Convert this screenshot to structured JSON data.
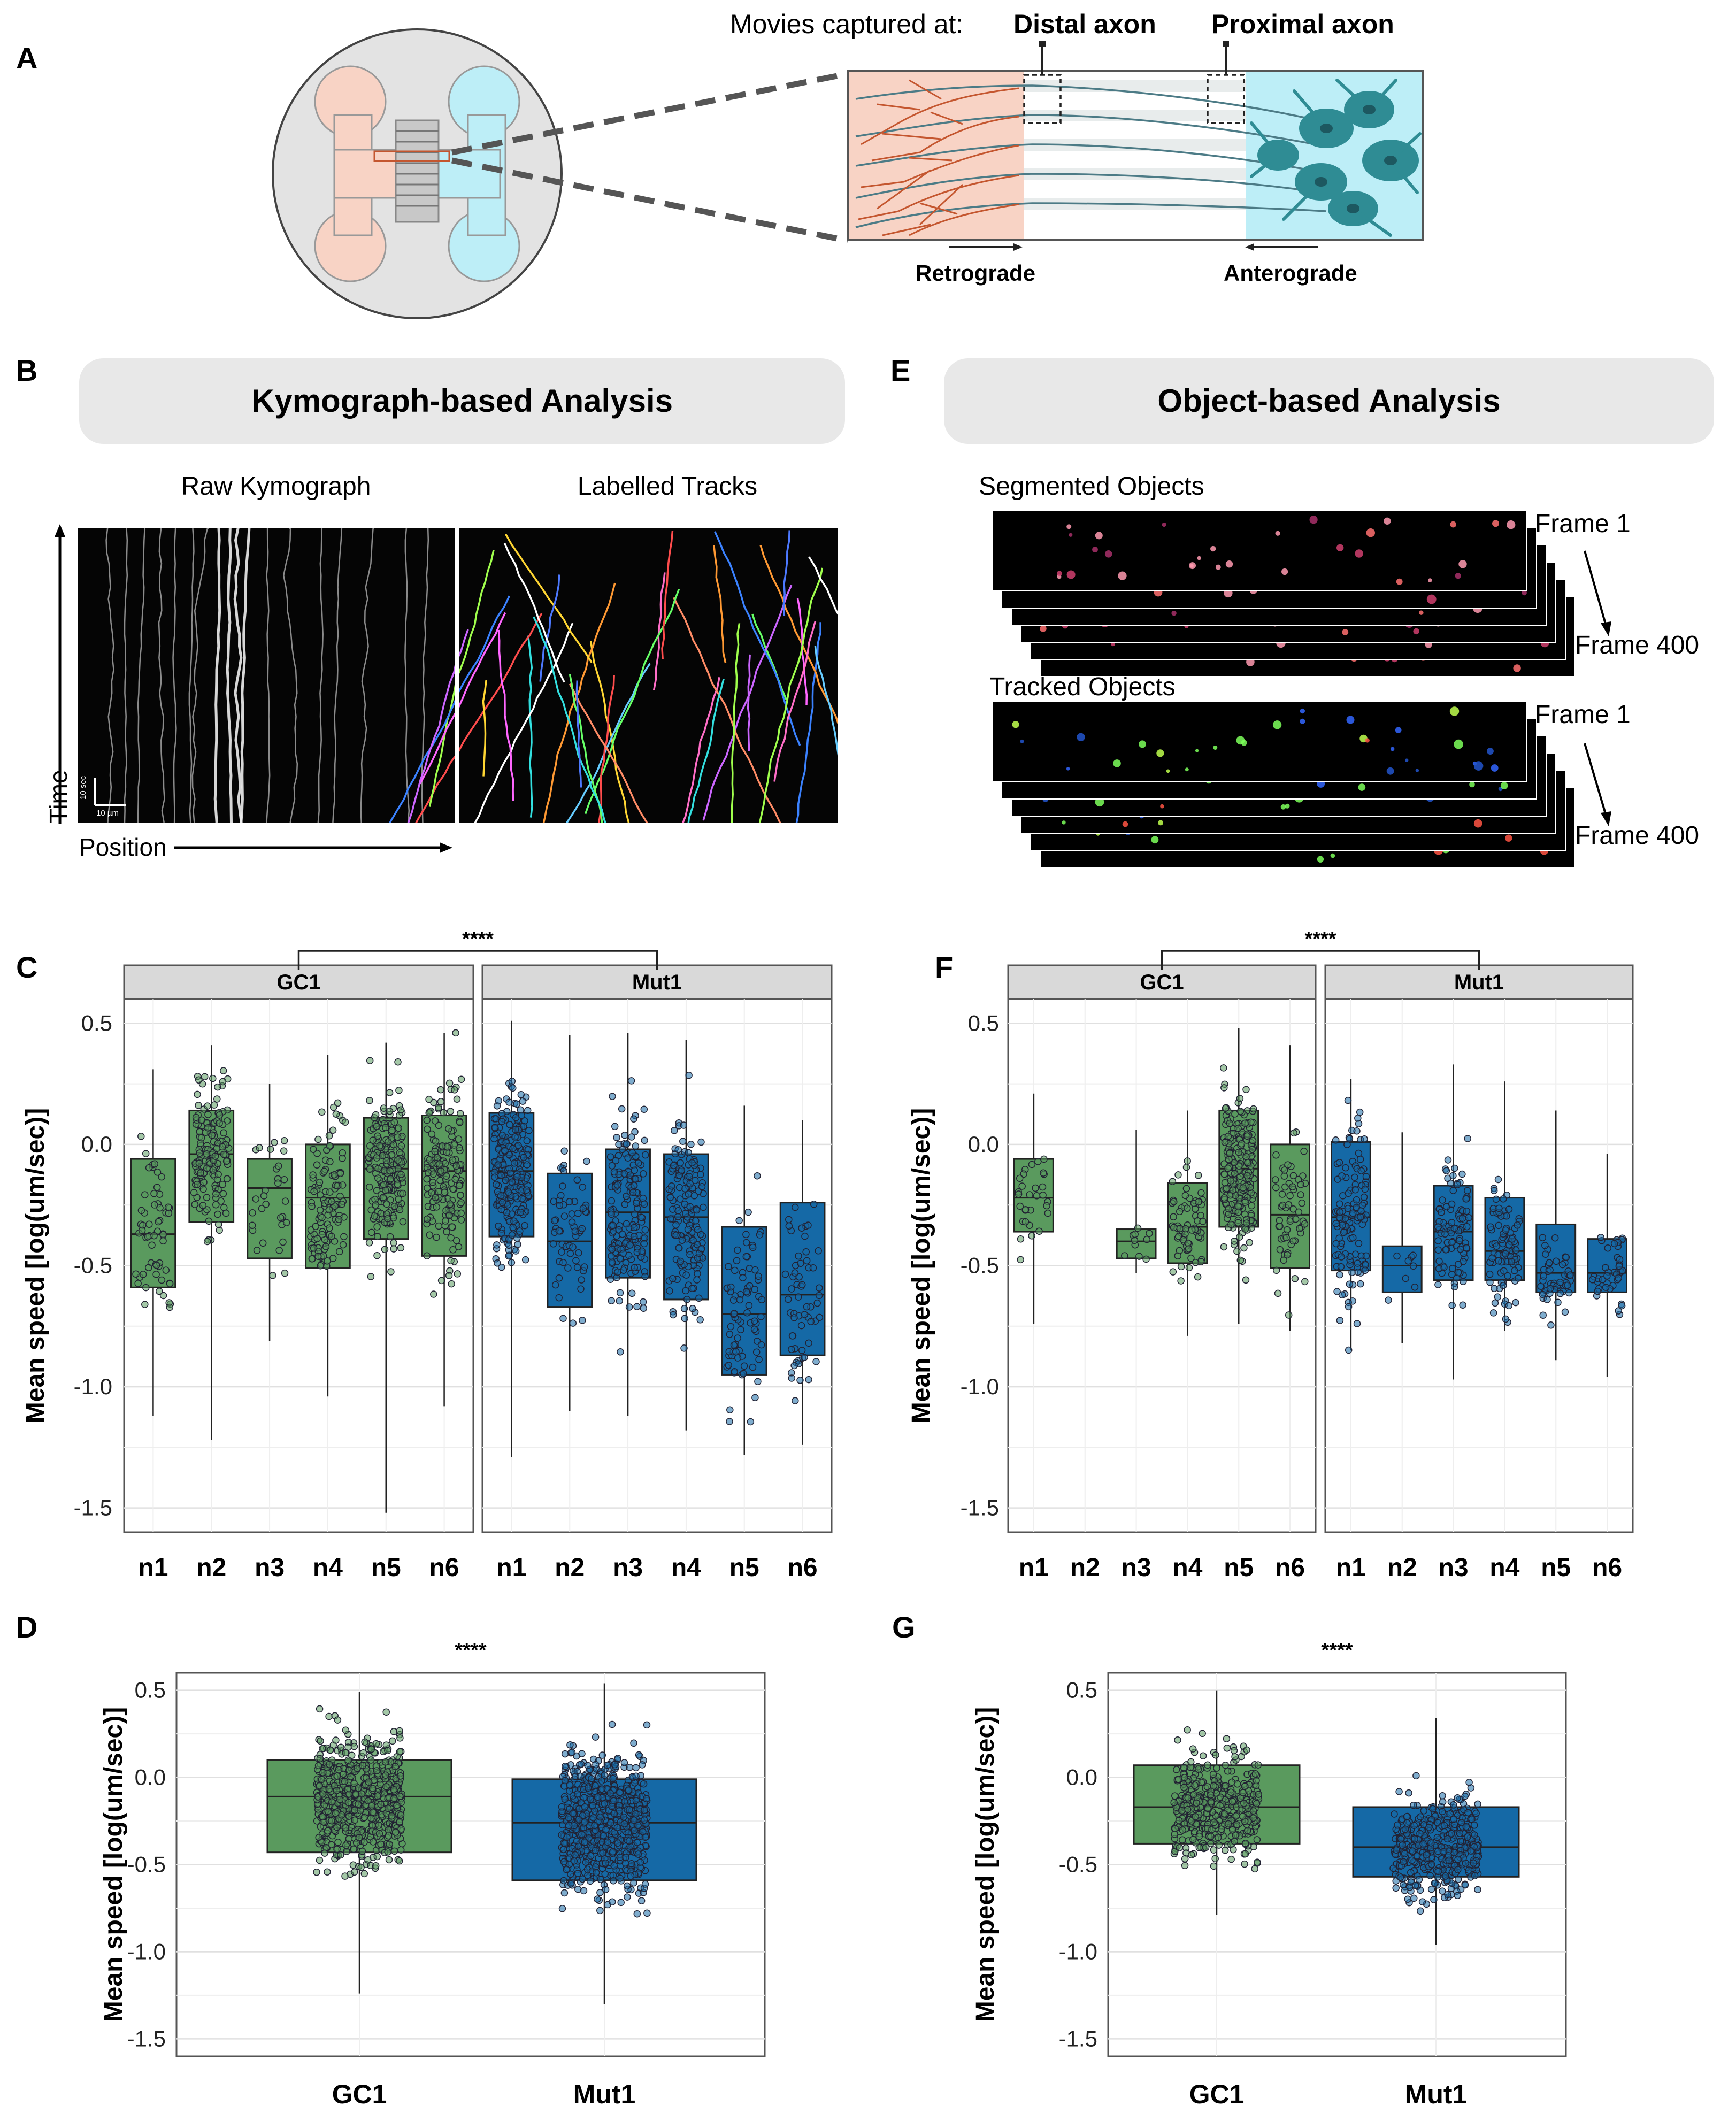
{
  "panel_labels": {
    "a": "A",
    "b": "B",
    "c": "C",
    "d": "D",
    "e": "E",
    "f": "F",
    "g": "G"
  },
  "colors": {
    "gc1": "#5a9a5e",
    "mut1": "#1569a6",
    "salmon": "#f8d3c5",
    "cyan": "#bdeef7",
    "neuron": "#2f8c94",
    "axon_red": "#c4562f",
    "strip": "#d9d9d9"
  },
  "panel_a": {
    "movies_caption": "Movies captured at:",
    "distal": "Distal axon",
    "proximal": "Proximal axon",
    "retrograde": "Retrograde",
    "anterograde": "Anterograde"
  },
  "panel_b": {
    "header": "Kymograph-based Analysis",
    "raw_title": "Raw Kymograph",
    "labelled_title": "Labelled Tracks",
    "time_label": "Time",
    "position_label": "Position",
    "scale_time": "10 sec",
    "scale_space": "10 µm"
  },
  "panel_e": {
    "header": "Object-based Analysis",
    "segmented_title": "Segmented Objects",
    "tracked_title": "Tracked Objects",
    "frame_first": "Frame 1",
    "frame_last": "Frame 400"
  },
  "chart_data": [
    {
      "panel": "C",
      "type": "box",
      "title": "",
      "ylabel": "Mean speed [log(um/sec)]",
      "ylim": [
        -1.6,
        0.6
      ],
      "yticks": [
        "0.5",
        "0.0",
        "-0.5",
        "-1.0",
        "-1.5"
      ],
      "significance": "****",
      "facets": [
        {
          "name": "GC1",
          "color": "gc1",
          "categories": [
            "n1",
            "n2",
            "n3",
            "n4",
            "n5",
            "n6"
          ],
          "boxes": [
            {
              "q1": -0.59,
              "median": -0.37,
              "q3": -0.06,
              "min": -1.12,
              "max": 0.31,
              "n": 60
            },
            {
              "q1": -0.32,
              "median": -0.04,
              "q3": 0.14,
              "min": -1.22,
              "max": 0.41,
              "n": 150
            },
            {
              "q1": -0.47,
              "median": -0.18,
              "q3": -0.06,
              "min": -0.81,
              "max": 0.25,
              "n": 30
            },
            {
              "q1": -0.51,
              "median": -0.22,
              "q3": 0.0,
              "min": -1.04,
              "max": 0.37,
              "n": 110
            },
            {
              "q1": -0.39,
              "median": -0.1,
              "q3": 0.11,
              "min": -1.52,
              "max": 0.42,
              "n": 200
            },
            {
              "q1": -0.46,
              "median": -0.11,
              "q3": 0.12,
              "min": -1.08,
              "max": 0.46,
              "n": 170
            }
          ]
        },
        {
          "name": "Mut1",
          "color": "mut1",
          "categories": [
            "n1",
            "n2",
            "n3",
            "n4",
            "n5",
            "n6"
          ],
          "boxes": [
            {
              "q1": -0.38,
              "median": -0.11,
              "q3": 0.13,
              "min": -1.29,
              "max": 0.51,
              "n": 230
            },
            {
              "q1": -0.67,
              "median": -0.4,
              "q3": -0.12,
              "min": -1.1,
              "max": 0.45,
              "n": 60
            },
            {
              "q1": -0.55,
              "median": -0.28,
              "q3": -0.02,
              "min": -1.12,
              "max": 0.46,
              "n": 170
            },
            {
              "q1": -0.64,
              "median": -0.3,
              "q3": -0.04,
              "min": -1.18,
              "max": 0.43,
              "n": 150
            },
            {
              "q1": -0.95,
              "median": -0.7,
              "q3": -0.34,
              "min": -1.28,
              "max": 0.16,
              "n": 80
            },
            {
              "q1": -0.87,
              "median": -0.62,
              "q3": -0.24,
              "min": -1.24,
              "max": 0.1,
              "n": 60
            }
          ]
        }
      ]
    },
    {
      "panel": "F",
      "type": "box",
      "title": "",
      "ylabel": "Mean speed [log(um/sec)]",
      "ylim": [
        -1.6,
        0.6
      ],
      "yticks": [
        "0.5",
        "0.0",
        "-0.5",
        "-1.0",
        "-1.5"
      ],
      "significance": "****",
      "facets": [
        {
          "name": "GC1",
          "color": "gc1",
          "categories": [
            "n1",
            "n2",
            "n3",
            "n4",
            "n5",
            "n6"
          ],
          "boxes": [
            {
              "q1": -0.36,
              "median": -0.22,
              "q3": -0.06,
              "min": -0.74,
              "max": 0.21,
              "n": 30
            },
            null,
            {
              "q1": -0.47,
              "median": -0.4,
              "q3": -0.35,
              "min": -0.53,
              "max": 0.06,
              "n": 10
            },
            {
              "q1": -0.49,
              "median": -0.34,
              "q3": -0.16,
              "min": -0.79,
              "max": 0.14,
              "n": 70
            },
            {
              "q1": -0.34,
              "median": -0.1,
              "q3": 0.14,
              "min": -0.74,
              "max": 0.48,
              "n": 220
            },
            {
              "q1": -0.51,
              "median": -0.29,
              "q3": 0.0,
              "min": -0.77,
              "max": 0.41,
              "n": 60
            }
          ]
        },
        {
          "name": "Mut1",
          "color": "mut1",
          "categories": [
            "n1",
            "n2",
            "n3",
            "n4",
            "n5",
            "n6"
          ],
          "boxes": [
            {
              "q1": -0.52,
              "median": -0.3,
              "q3": 0.01,
              "min": -0.85,
              "max": 0.27,
              "n": 120
            },
            {
              "q1": -0.61,
              "median": -0.5,
              "q3": -0.42,
              "min": -0.82,
              "max": 0.05,
              "n": 8
            },
            {
              "q1": -0.56,
              "median": -0.36,
              "q3": -0.17,
              "min": -0.97,
              "max": 0.33,
              "n": 90
            },
            {
              "q1": -0.56,
              "median": -0.44,
              "q3": -0.22,
              "min": -0.77,
              "max": 0.26,
              "n": 90
            },
            {
              "q1": -0.61,
              "median": -0.53,
              "q3": -0.33,
              "min": -0.89,
              "max": 0.14,
              "n": 50
            },
            {
              "q1": -0.61,
              "median": -0.53,
              "q3": -0.39,
              "min": -0.96,
              "max": -0.04,
              "n": 40
            }
          ]
        }
      ]
    },
    {
      "panel": "D",
      "type": "box",
      "title": "",
      "ylabel": "Mean speed [log(um/sec)]",
      "ylim": [
        -1.6,
        0.6
      ],
      "yticks": [
        "0.5",
        "0.0",
        "-0.5",
        "-1.0",
        "-1.5"
      ],
      "significance": "****",
      "categories": [
        "GC1",
        "Mut1"
      ],
      "boxes": [
        {
          "q1": -0.43,
          "median": -0.11,
          "q3": 0.1,
          "min": -1.24,
          "max": 0.49,
          "n": 650,
          "color": "gc1"
        },
        {
          "q1": -0.59,
          "median": -0.26,
          "q3": -0.01,
          "min": -1.3,
          "max": 0.54,
          "n": 700,
          "color": "mut1"
        }
      ]
    },
    {
      "panel": "G",
      "type": "box",
      "title": "",
      "ylabel": "Mean speed [log(um/sec)]",
      "ylim": [
        -1.6,
        0.6
      ],
      "yticks": [
        "0.5",
        "0.0",
        "-0.5",
        "-1.0",
        "-1.5"
      ],
      "significance": "****",
      "categories": [
        "GC1",
        "Mut1"
      ],
      "boxes": [
        {
          "q1": -0.38,
          "median": -0.17,
          "q3": 0.07,
          "min": -0.79,
          "max": 0.5,
          "n": 420,
          "color": "gc1"
        },
        {
          "q1": -0.57,
          "median": -0.4,
          "q3": -0.17,
          "min": -0.96,
          "max": 0.34,
          "n": 420,
          "color": "mut1"
        }
      ]
    }
  ]
}
